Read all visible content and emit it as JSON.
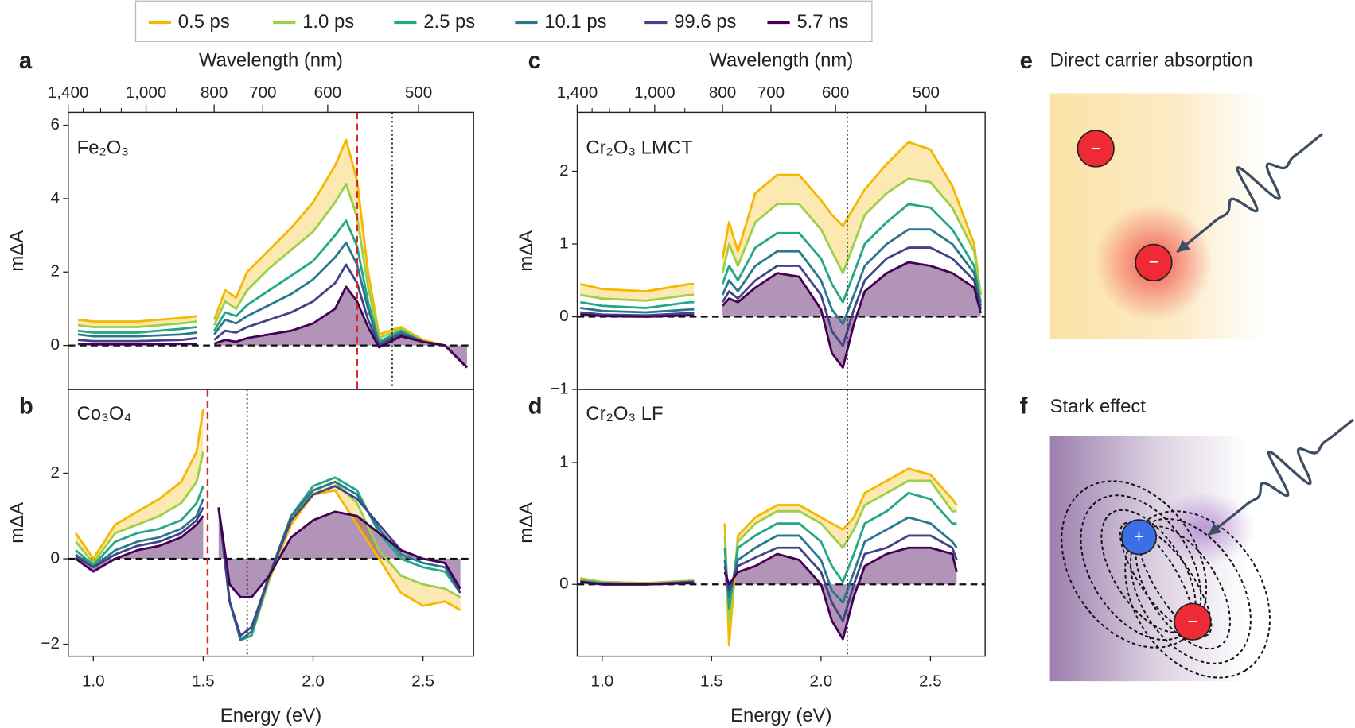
{
  "chart_data": [
    {
      "type": "line",
      "letter": "a",
      "label": "Fe₂O₃",
      "ylabel": "mΔA",
      "x2label": "Wavelength (nm)",
      "x": [
        0.93,
        1.0,
        1.2,
        1.4,
        1.47,
        1.51,
        1.55,
        1.6,
        1.65,
        1.7,
        1.8,
        1.9,
        2.0,
        2.1,
        2.15,
        2.2,
        2.25,
        2.3,
        2.4,
        2.5,
        2.6,
        2.7
      ],
      "series": [
        {
          "name": "0.5 ps",
          "color": "#f5b700",
          "values": [
            0.7,
            0.65,
            0.65,
            0.75,
            0.8,
            null,
            0.7,
            1.5,
            1.3,
            2.0,
            2.6,
            3.2,
            3.9,
            4.9,
            5.6,
            4.5,
            2.0,
            0.3,
            0.5,
            0.15,
            0,
            -0.6
          ]
        },
        {
          "name": "1.0 ps",
          "color": "#9bd048",
          "values": [
            0.55,
            0.5,
            0.5,
            0.6,
            0.65,
            null,
            0.55,
            1.2,
            1.0,
            1.5,
            2.1,
            2.6,
            3.1,
            3.9,
            4.4,
            3.5,
            1.6,
            0.2,
            0.45,
            0.1,
            0,
            -0.6
          ]
        },
        {
          "name": "2.5 ps",
          "color": "#22a884",
          "values": [
            0.4,
            0.35,
            0.35,
            0.45,
            0.5,
            null,
            0.4,
            0.9,
            0.8,
            1.1,
            1.5,
            1.9,
            2.3,
            3.0,
            3.4,
            2.7,
            1.2,
            0.1,
            0.4,
            0.1,
            0,
            -0.6
          ]
        },
        {
          "name": "10.1 ps",
          "color": "#2a788e",
          "values": [
            0.3,
            0.25,
            0.25,
            0.3,
            0.35,
            null,
            0.3,
            0.7,
            0.6,
            0.8,
            1.1,
            1.4,
            1.8,
            2.4,
            2.8,
            2.2,
            1.0,
            0.05,
            0.35,
            0.1,
            0,
            -0.6
          ]
        },
        {
          "name": "99.6 ps",
          "color": "#414487",
          "values": [
            0.15,
            0.12,
            0.12,
            0.15,
            0.2,
            null,
            0.15,
            0.4,
            0.35,
            0.5,
            0.7,
            0.9,
            1.2,
            1.7,
            2.2,
            1.7,
            0.7,
            0,
            0.3,
            0.1,
            0,
            -0.6
          ]
        },
        {
          "name": "5.7 ns",
          "color": "#440154",
          "values": [
            0.05,
            0.03,
            0.03,
            0.05,
            0.05,
            null,
            0.05,
            0.15,
            0.1,
            0.2,
            0.3,
            0.4,
            0.6,
            1.0,
            1.6,
            1.2,
            0.5,
            -0.05,
            0.25,
            0.1,
            0,
            -0.6
          ]
        }
      ],
      "xlim": [
        0.886,
        2.73
      ],
      "ylim": [
        -1.2,
        6.35
      ],
      "yticks": [
        0,
        2,
        4,
        6
      ],
      "x2ticks": [
        {
          "value": 1400,
          "label": "1,400"
        },
        {
          "value": 1000,
          "label": "1,000"
        },
        800,
        700,
        600,
        500
      ],
      "x2minorticks": [
        1300,
        1200,
        1100,
        900
      ],
      "vlines": [
        {
          "x": 2.2,
          "color": "#d62728",
          "style": "dashed"
        },
        {
          "x": 2.36,
          "color": "#222222",
          "style": "dotted"
        }
      ],
      "hlines": [
        0
      ]
    },
    {
      "type": "line",
      "letter": "b",
      "label": "Co₃O₄",
      "ylabel": "mΔA",
      "xlabel": "Energy (eV)",
      "x": [
        0.92,
        1.0,
        1.1,
        1.2,
        1.3,
        1.4,
        1.47,
        1.5,
        1.53,
        1.57,
        1.62,
        1.67,
        1.72,
        1.8,
        1.9,
        2.0,
        2.1,
        2.2,
        2.3,
        2.4,
        2.5,
        2.6,
        2.67
      ],
      "series": [
        {
          "name": "0.5 ps",
          "color": "#f5b700",
          "values": [
            0.6,
            0,
            0.8,
            1.1,
            1.4,
            1.8,
            2.5,
            3.5,
            null,
            1.2,
            -1.0,
            -1.9,
            -1.8,
            -0.5,
            0.8,
            1.5,
            1.6,
            0.8,
            0,
            -0.8,
            -1.1,
            -1.0,
            -1.2
          ]
        },
        {
          "name": "1.0 ps",
          "color": "#9bd048",
          "values": [
            0.4,
            -0.1,
            0.6,
            0.8,
            1.0,
            1.3,
            1.8,
            2.5,
            null,
            1.2,
            -1.0,
            -1.9,
            -1.8,
            -0.5,
            0.9,
            1.6,
            1.8,
            1.3,
            0.2,
            -0.4,
            -0.6,
            -0.7,
            -0.9
          ]
        },
        {
          "name": "2.5 ps",
          "color": "#22a884",
          "values": [
            0.2,
            -0.15,
            0.4,
            0.6,
            0.7,
            0.9,
            1.3,
            1.7,
            null,
            1.2,
            -1.0,
            -1.9,
            -1.8,
            -0.4,
            1.0,
            1.7,
            1.9,
            1.6,
            0.6,
            0,
            -0.2,
            -0.3,
            -0.8
          ]
        },
        {
          "name": "10.1 ps",
          "color": "#2a788e",
          "values": [
            0.1,
            -0.2,
            0.2,
            0.4,
            0.5,
            0.7,
            1.0,
            1.4,
            null,
            1.2,
            -1.0,
            -1.9,
            -1.7,
            -0.4,
            1.0,
            1.6,
            1.8,
            1.5,
            0.7,
            0.1,
            -0.1,
            -0.2,
            -0.8
          ]
        },
        {
          "name": "99.6 ps",
          "color": "#414487",
          "values": [
            0.05,
            -0.2,
            0.1,
            0.3,
            0.4,
            0.6,
            0.9,
            1.2,
            null,
            1.2,
            -1.0,
            -1.8,
            -1.6,
            -0.4,
            0.9,
            1.5,
            1.7,
            1.4,
            0.8,
            0.2,
            0,
            -0.1,
            -0.8
          ]
        },
        {
          "name": "5.7 ns",
          "color": "#440154",
          "values": [
            0,
            -0.3,
            0,
            0.2,
            0.3,
            0.5,
            0.8,
            1.0,
            null,
            1.2,
            -0.6,
            -0.9,
            -0.9,
            -0.4,
            0.5,
            0.9,
            1.1,
            1.0,
            0.6,
            0.2,
            0,
            -0.1,
            -0.7
          ]
        }
      ],
      "xlim": [
        0.886,
        2.73
      ],
      "ylim": [
        -2.28,
        3.96
      ],
      "yticks": [
        {
          "value": -2,
          "label": "−2"
        },
        0,
        2
      ],
      "xticks": [
        {
          "value": 1,
          "label": "1.0"
        },
        1.5,
        {
          "value": 2,
          "label": "2.0"
        },
        2.5
      ],
      "vlines": [
        {
          "x": 1.52,
          "color": "#d62728",
          "style": "dashed"
        },
        {
          "x": 1.7,
          "color": "#222222",
          "style": "dotted"
        }
      ],
      "hlines": [
        0
      ]
    },
    {
      "type": "line",
      "letter": "c",
      "label": "Cr₂O₃ LMCT",
      "ylabel": "mΔA",
      "x2label": "Wavelength (nm)",
      "x": [
        0.9,
        1.0,
        1.2,
        1.4,
        1.42,
        1.5,
        1.55,
        1.58,
        1.62,
        1.7,
        1.8,
        1.9,
        2.0,
        2.05,
        2.1,
        2.15,
        2.2,
        2.3,
        2.4,
        2.5,
        2.6,
        2.7,
        2.73
      ],
      "series": [
        {
          "name": "0.5 ps",
          "color": "#f5b700",
          "values": [
            0.45,
            0.38,
            0.35,
            0.45,
            0.45,
            null,
            0.8,
            1.3,
            0.9,
            1.7,
            1.95,
            1.95,
            1.6,
            1.4,
            1.25,
            1.5,
            1.75,
            2.1,
            2.4,
            2.3,
            1.8,
            1.0,
            0.3
          ]
        },
        {
          "name": "1.0 ps",
          "color": "#9bd048",
          "values": [
            0.3,
            0.25,
            0.22,
            0.3,
            0.3,
            null,
            0.6,
            1.0,
            0.7,
            1.3,
            1.55,
            1.55,
            1.2,
            0.9,
            0.6,
            1.0,
            1.4,
            1.7,
            1.9,
            1.85,
            1.5,
            0.9,
            0.3
          ]
        },
        {
          "name": "2.5 ps",
          "color": "#22a884",
          "values": [
            0.2,
            0.15,
            0.12,
            0.2,
            0.2,
            null,
            0.45,
            0.7,
            0.5,
            0.95,
            1.15,
            1.15,
            0.8,
            0.45,
            0.2,
            0.6,
            1.0,
            1.3,
            1.55,
            1.5,
            1.2,
            0.7,
            0.2
          ]
        },
        {
          "name": "10.1 ps",
          "color": "#2a788e",
          "values": [
            0.12,
            0.08,
            0.06,
            0.1,
            0.1,
            null,
            0.3,
            0.5,
            0.35,
            0.7,
            0.9,
            0.9,
            0.5,
            0.1,
            -0.1,
            0.3,
            0.7,
            1.0,
            1.2,
            1.2,
            1.0,
            0.6,
            0.15
          ]
        },
        {
          "name": "99.6 ps",
          "color": "#414487",
          "values": [
            0.06,
            0.03,
            0.02,
            0.05,
            0.05,
            null,
            0.2,
            0.35,
            0.25,
            0.5,
            0.7,
            0.7,
            0.3,
            -0.2,
            -0.4,
            0.1,
            0.5,
            0.8,
            0.95,
            0.95,
            0.8,
            0.5,
            0.1
          ]
        },
        {
          "name": "5.7 ns",
          "color": "#440154",
          "values": [
            0.03,
            0.01,
            0,
            0.02,
            0.02,
            null,
            0.15,
            0.25,
            0.2,
            0.4,
            0.6,
            0.55,
            0.1,
            -0.5,
            -0.7,
            -0.1,
            0.35,
            0.6,
            0.75,
            0.7,
            0.6,
            0.4,
            0.05
          ]
        }
      ],
      "xlim": [
        0.886,
        2.75
      ],
      "ylim": [
        -1.0,
        2.81
      ],
      "yticks": [
        {
          "value": -1,
          "label": "−1"
        },
        0,
        1,
        2
      ],
      "x2ticks": [
        {
          "value": 1400,
          "label": "1,400"
        },
        {
          "value": 1000,
          "label": "1,000"
        },
        800,
        700,
        600,
        500
      ],
      "x2minorticks": [
        1300,
        1200,
        1100,
        900
      ],
      "vlines": [
        {
          "x": 2.12,
          "color": "#222222",
          "style": "dotted"
        }
      ],
      "hlines": [
        0
      ]
    },
    {
      "type": "line",
      "letter": "d",
      "label": "Cr₂O₃ LF",
      "ylabel": "mΔA",
      "xlabel": "Energy (eV)",
      "x": [
        0.9,
        1.0,
        1.2,
        1.4,
        1.42,
        1.5,
        1.56,
        1.58,
        1.62,
        1.7,
        1.8,
        1.9,
        2.0,
        2.05,
        2.1,
        2.15,
        2.2,
        2.3,
        2.4,
        2.5,
        2.6,
        2.62
      ],
      "series": [
        {
          "name": "0.5 ps",
          "color": "#f5b700",
          "values": [
            0.05,
            0.02,
            0.01,
            0.03,
            0.03,
            null,
            0.5,
            -0.5,
            0.4,
            0.55,
            0.65,
            0.65,
            0.55,
            0.5,
            0.45,
            0.55,
            0.75,
            0.85,
            0.95,
            0.9,
            0.7,
            0.65
          ]
        },
        {
          "name": "1.0 ps",
          "color": "#9bd048",
          "values": [
            0.04,
            0.02,
            0.01,
            0.03,
            0.03,
            null,
            0.4,
            -0.3,
            0.35,
            0.5,
            0.6,
            0.6,
            0.5,
            0.4,
            0.3,
            0.45,
            0.65,
            0.75,
            0.85,
            0.85,
            0.6,
            0.6
          ]
        },
        {
          "name": "2.5 ps",
          "color": "#22a884",
          "values": [
            0.03,
            0.01,
            0,
            0.02,
            0.02,
            null,
            0.3,
            -0.2,
            0.3,
            0.4,
            0.5,
            0.5,
            0.35,
            0.15,
            0.02,
            0.25,
            0.5,
            0.6,
            0.75,
            0.7,
            0.5,
            0.5
          ]
        },
        {
          "name": "10.1 ps",
          "color": "#2a788e",
          "values": [
            0.02,
            0.01,
            0,
            0.02,
            0.02,
            null,
            0.2,
            -0.1,
            0.2,
            0.3,
            0.4,
            0.4,
            0.2,
            -0.05,
            -0.15,
            0.1,
            0.35,
            0.45,
            0.55,
            0.5,
            0.35,
            0.3
          ]
        },
        {
          "name": "99.6 ps",
          "color": "#414487",
          "values": [
            0.02,
            0,
            0,
            0.02,
            0.02,
            null,
            0.15,
            -0.05,
            0.15,
            0.22,
            0.3,
            0.3,
            0.1,
            -0.15,
            -0.3,
            0,
            0.25,
            0.3,
            0.4,
            0.4,
            0.3,
            0.2
          ]
        },
        {
          "name": "5.7 ns",
          "color": "#440154",
          "values": [
            0.02,
            0,
            0,
            0.01,
            0.01,
            null,
            0.1,
            0,
            0.1,
            0.15,
            0.25,
            0.2,
            0,
            -0.3,
            -0.45,
            -0.1,
            0.15,
            0.25,
            0.3,
            0.3,
            0.25,
            0.1
          ]
        }
      ],
      "xlim": [
        0.886,
        2.75
      ],
      "ylim": [
        -0.59,
        1.6
      ],
      "yticks": [
        0,
        1
      ],
      "xticks": [
        {
          "value": 1,
          "label": "1.0"
        },
        1.5,
        {
          "value": 2,
          "label": "2.0"
        },
        2.5
      ],
      "vlines": [
        {
          "x": 2.12,
          "color": "#222222",
          "style": "dotted"
        }
      ],
      "hlines": [
        0
      ]
    }
  ],
  "diagrams": [
    {
      "letter": "e",
      "title": "Direct carrier absorption",
      "charges": [
        "−",
        "−"
      ]
    },
    {
      "letter": "f",
      "title": "Stark effect",
      "charges": [
        "+",
        "−"
      ]
    }
  ]
}
